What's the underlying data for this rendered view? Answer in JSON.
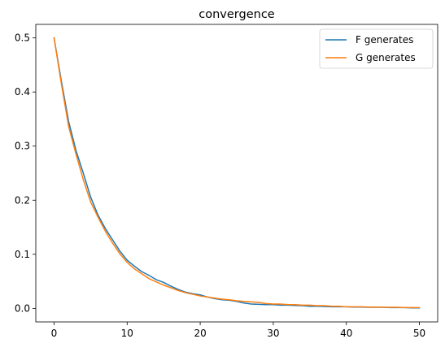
{
  "chart_data": {
    "type": "line",
    "title": "convergence",
    "xlabel": "",
    "ylabel": "",
    "xlim": [
      -2.5,
      52.5
    ],
    "ylim": [
      -0.025,
      0.525
    ],
    "xticks": [
      0,
      10,
      20,
      30,
      40,
      50
    ],
    "yticks": [
      0.0,
      0.1,
      0.2,
      0.3,
      0.4,
      0.5
    ],
    "xtick_labels": [
      "0",
      "10",
      "20",
      "30",
      "40",
      "50"
    ],
    "ytick_labels": [
      "0.0",
      "0.1",
      "0.2",
      "0.3",
      "0.4",
      "0.5"
    ],
    "grid": false,
    "legend_position": "top-right",
    "x": [
      0,
      1,
      2,
      3,
      4,
      5,
      6,
      7,
      8,
      9,
      10,
      11,
      12,
      13,
      14,
      15,
      16,
      17,
      18,
      19,
      20,
      21,
      22,
      23,
      24,
      25,
      26,
      27,
      28,
      29,
      30,
      31,
      32,
      33,
      34,
      35,
      36,
      37,
      38,
      39,
      40,
      41,
      42,
      43,
      44,
      45,
      46,
      47,
      48,
      49,
      50
    ],
    "series": [
      {
        "name": "F generates",
        "color": "#1f77b4",
        "values": [
          0.5,
          0.42,
          0.345,
          0.292,
          0.25,
          0.206,
          0.173,
          0.148,
          0.127,
          0.106,
          0.089,
          0.078,
          0.068,
          0.061,
          0.053,
          0.048,
          0.041,
          0.035,
          0.03,
          0.027,
          0.025,
          0.021,
          0.018,
          0.016,
          0.015,
          0.013,
          0.01,
          0.008,
          0.0075,
          0.007,
          0.007,
          0.006,
          0.006,
          0.0055,
          0.005,
          0.004,
          0.004,
          0.0035,
          0.003,
          0.003,
          0.003,
          0.0025,
          0.0025,
          0.002,
          0.002,
          0.002,
          0.0015,
          0.0015,
          0.0015,
          0.001,
          0.001
        ]
      },
      {
        "name": "G generates",
        "color": "#ff7f0e",
        "values": [
          0.5,
          0.415,
          0.336,
          0.285,
          0.238,
          0.197,
          0.169,
          0.143,
          0.121,
          0.101,
          0.085,
          0.073,
          0.064,
          0.055,
          0.049,
          0.043,
          0.038,
          0.033,
          0.029,
          0.026,
          0.023,
          0.021,
          0.019,
          0.017,
          0.016,
          0.014,
          0.013,
          0.012,
          0.011,
          0.009,
          0.008,
          0.008,
          0.007,
          0.007,
          0.006,
          0.006,
          0.005,
          0.005,
          0.004,
          0.004,
          0.003,
          0.003,
          0.003,
          0.0025,
          0.0025,
          0.002,
          0.002,
          0.002,
          0.0015,
          0.0015,
          0.0015
        ]
      }
    ]
  }
}
